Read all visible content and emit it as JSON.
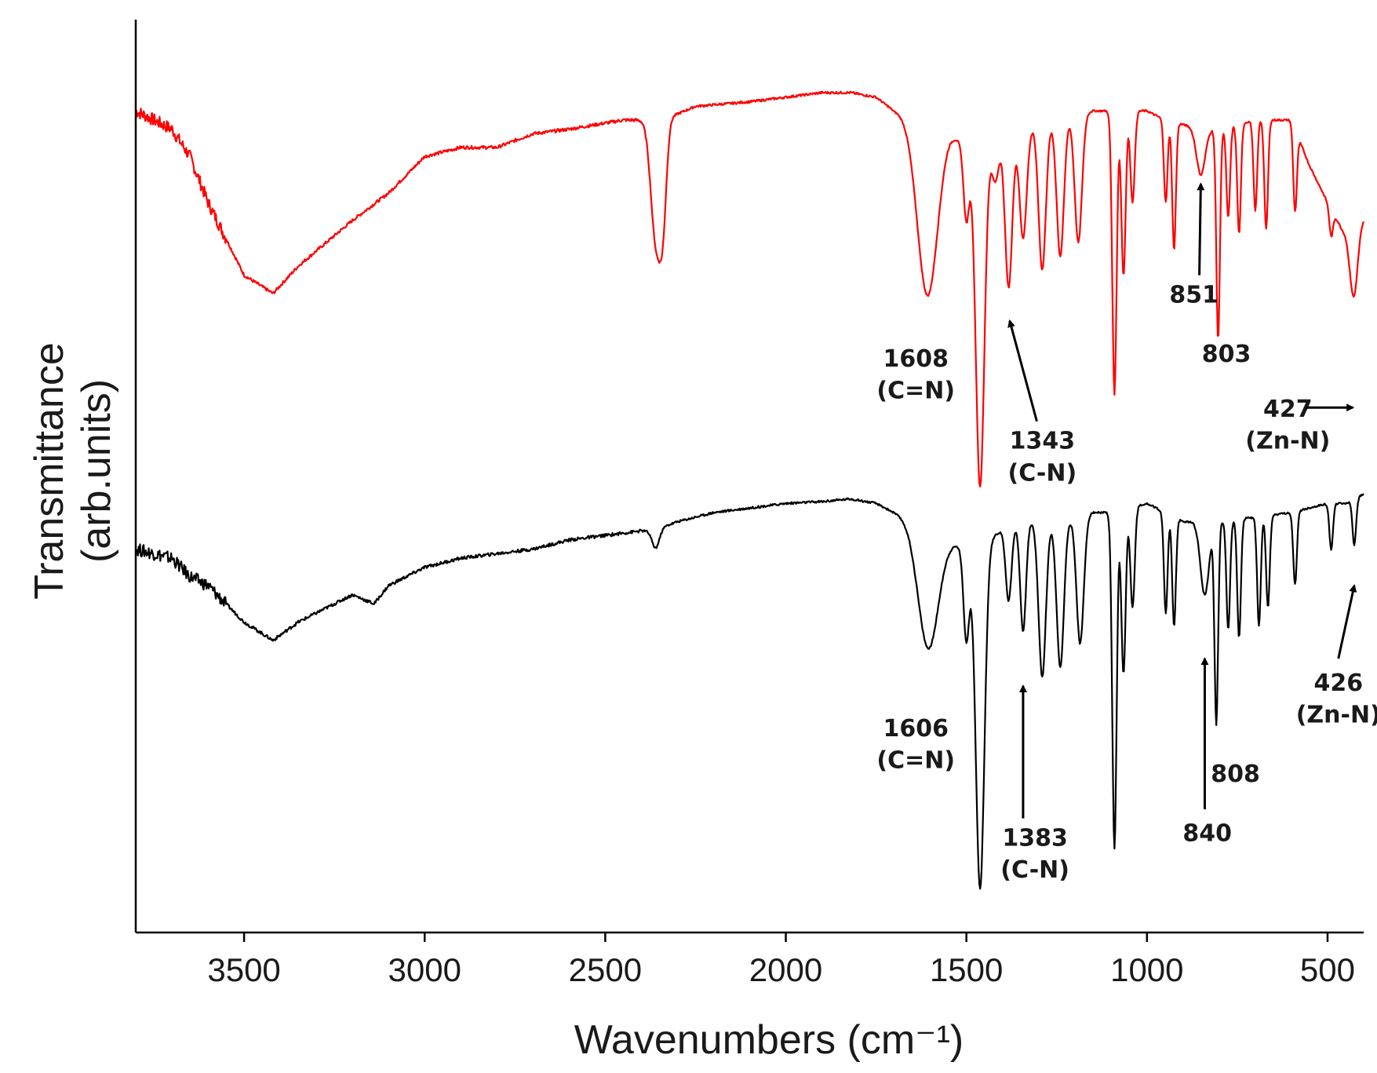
{
  "chart_data": {
    "type": "line",
    "title": "",
    "xlabel": "Wavenumbers (cm⁻¹)",
    "ylabel_line1": "Transmittance",
    "ylabel_line2": "(arb.units)",
    "xlim": [
      3800,
      400
    ],
    "ylim": [
      0,
      100
    ],
    "x_ticks": [
      3500,
      3000,
      2500,
      2000,
      1500,
      1000,
      500
    ],
    "x_tick_labels": [
      "3500",
      "3000",
      "2500",
      "2000",
      "1500",
      "1000",
      "500"
    ],
    "grid": false,
    "series": [
      {
        "name": "red-spectrum",
        "color": "#ff0000",
        "baseline": [
          [
            3800,
            90
          ],
          [
            3700,
            88
          ],
          [
            3650,
            85
          ],
          [
            3600,
            80
          ],
          [
            3500,
            72
          ],
          [
            3420,
            70
          ],
          [
            3350,
            73
          ],
          [
            3200,
            78
          ],
          [
            3100,
            81
          ],
          [
            3000,
            85
          ],
          [
            2900,
            86
          ],
          [
            2800,
            86
          ],
          [
            2700,
            87.5
          ],
          [
            2600,
            88
          ],
          [
            2450,
            89
          ],
          [
            2380,
            89
          ],
          [
            2340,
            89
          ],
          [
            2250,
            90.5
          ],
          [
            2100,
            91
          ],
          [
            2000,
            91.5
          ],
          [
            1900,
            92
          ],
          [
            1820,
            92
          ],
          [
            1750,
            91.5
          ],
          [
            1700,
            90
          ],
          [
            1550,
            88
          ],
          [
            1500,
            86
          ],
          [
            1450,
            87
          ],
          [
            1400,
            87.5
          ],
          [
            1350,
            88
          ],
          [
            1300,
            88.5
          ],
          [
            1250,
            89
          ],
          [
            1200,
            89.5
          ],
          [
            1150,
            90
          ],
          [
            1100,
            90
          ],
          [
            1000,
            90
          ],
          [
            950,
            89
          ],
          [
            850,
            88
          ],
          [
            800,
            88
          ],
          [
            700,
            89
          ],
          [
            650,
            89
          ],
          [
            600,
            89
          ],
          [
            550,
            84
          ],
          [
            500,
            80
          ],
          [
            460,
            77
          ],
          [
            440,
            76
          ],
          [
            400,
            78
          ]
        ],
        "peaks": [
          {
            "x": 3420,
            "depth": 0,
            "width": 1
          },
          {
            "x": 2360,
            "depth": 13,
            "width": 14
          },
          {
            "x": 2340,
            "depth": 9,
            "width": 10
          },
          {
            "x": 1608,
            "depth": 19,
            "width": 28
          },
          {
            "x": 1500,
            "depth": 8,
            "width": 8
          },
          {
            "x": 1462,
            "depth": 38,
            "width": 12
          },
          {
            "x": 1420,
            "depth": 5,
            "width": 10
          },
          {
            "x": 1383,
            "depth": 17,
            "width": 10
          },
          {
            "x": 1343,
            "depth": 12,
            "width": 10
          },
          {
            "x": 1290,
            "depth": 16,
            "width": 10
          },
          {
            "x": 1240,
            "depth": 15,
            "width": 10
          },
          {
            "x": 1190,
            "depth": 14,
            "width": 10
          },
          {
            "x": 1090,
            "depth": 31,
            "width": 6
          },
          {
            "x": 1065,
            "depth": 18,
            "width": 6
          },
          {
            "x": 1040,
            "depth": 10,
            "width": 6
          },
          {
            "x": 948,
            "depth": 9,
            "width": 5
          },
          {
            "x": 925,
            "depth": 14,
            "width": 5
          },
          {
            "x": 851,
            "depth": 5,
            "width": 12
          },
          {
            "x": 803,
            "depth": 23,
            "width": 5
          },
          {
            "x": 775,
            "depth": 10,
            "width": 5
          },
          {
            "x": 745,
            "depth": 12,
            "width": 5
          },
          {
            "x": 700,
            "depth": 10,
            "width": 5
          },
          {
            "x": 670,
            "depth": 12,
            "width": 5
          },
          {
            "x": 590,
            "depth": 9,
            "width": 5
          },
          {
            "x": 490,
            "depth": 3,
            "width": 5
          },
          {
            "x": 427,
            "depth": 7,
            "width": 10
          }
        ]
      },
      {
        "name": "black-spectrum",
        "color": "#000000",
        "baseline": [
          [
            3800,
            42
          ],
          [
            3700,
            41
          ],
          [
            3650,
            39
          ],
          [
            3600,
            38
          ],
          [
            3500,
            34
          ],
          [
            3420,
            32
          ],
          [
            3350,
            34
          ],
          [
            3200,
            37
          ],
          [
            3140,
            36
          ],
          [
            3100,
            38
          ],
          [
            3000,
            40
          ],
          [
            2900,
            41
          ],
          [
            2800,
            41.5
          ],
          [
            2700,
            42
          ],
          [
            2600,
            43
          ],
          [
            2500,
            43.5
          ],
          [
            2400,
            44
          ],
          [
            2370,
            44
          ],
          [
            2300,
            45
          ],
          [
            2200,
            46
          ],
          [
            2100,
            46.5
          ],
          [
            2000,
            47
          ],
          [
            1900,
            47.2
          ],
          [
            1820,
            47.5
          ],
          [
            1750,
            47
          ],
          [
            1700,
            46
          ],
          [
            1550,
            43
          ],
          [
            1500,
            42
          ],
          [
            1450,
            43
          ],
          [
            1400,
            44
          ],
          [
            1350,
            45
          ],
          [
            1300,
            45
          ],
          [
            1250,
            45
          ],
          [
            1200,
            45.5
          ],
          [
            1150,
            46
          ],
          [
            1100,
            46
          ],
          [
            1000,
            47
          ],
          [
            950,
            46
          ],
          [
            900,
            45
          ],
          [
            850,
            45
          ],
          [
            800,
            45
          ],
          [
            700,
            45.5
          ],
          [
            600,
            46
          ],
          [
            500,
            47
          ],
          [
            450,
            47
          ],
          [
            400,
            48
          ]
        ],
        "peaks": [
          {
            "x": 2360,
            "depth": 2,
            "width": 10
          },
          {
            "x": 1606,
            "depth": 13,
            "width": 28
          },
          {
            "x": 1500,
            "depth": 10,
            "width": 8
          },
          {
            "x": 1462,
            "depth": 38,
            "width": 12
          },
          {
            "x": 1383,
            "depth": 8,
            "width": 8
          },
          {
            "x": 1343,
            "depth": 12,
            "width": 8
          },
          {
            "x": 1290,
            "depth": 17,
            "width": 10
          },
          {
            "x": 1240,
            "depth": 16,
            "width": 10
          },
          {
            "x": 1185,
            "depth": 14,
            "width": 10
          },
          {
            "x": 1090,
            "depth": 37,
            "width": 6
          },
          {
            "x": 1065,
            "depth": 18,
            "width": 6
          },
          {
            "x": 1040,
            "depth": 11,
            "width": 6
          },
          {
            "x": 948,
            "depth": 11,
            "width": 5
          },
          {
            "x": 925,
            "depth": 12,
            "width": 5
          },
          {
            "x": 840,
            "depth": 8,
            "width": 12
          },
          {
            "x": 808,
            "depth": 22,
            "width": 5
          },
          {
            "x": 775,
            "depth": 12,
            "width": 5
          },
          {
            "x": 745,
            "depth": 13,
            "width": 5
          },
          {
            "x": 690,
            "depth": 12,
            "width": 5
          },
          {
            "x": 665,
            "depth": 10,
            "width": 5
          },
          {
            "x": 590,
            "depth": 8,
            "width": 5
          },
          {
            "x": 490,
            "depth": 5,
            "width": 5
          },
          {
            "x": 426,
            "depth": 5,
            "width": 5
          }
        ]
      }
    ],
    "annotations": [
      {
        "text": "1608",
        "text2": "(C=N)",
        "color": "#1a1a1a",
        "tx": 1640,
        "ty": 62,
        "ty2": 58.5
      },
      {
        "text": "1343",
        "text2": "(C-N)",
        "color": "#1a1a1a",
        "tx": 1290,
        "ty": 53,
        "ty2": 49.5,
        "arrow_from": [
          1305,
          56
        ],
        "arrow_to": [
          1380,
          67
        ]
      },
      {
        "text": "851",
        "text2": "",
        "color": "#1a1a1a",
        "tx": 870,
        "ty": 69,
        "arrow_from": [
          855,
          72
        ],
        "arrow_to": [
          851,
          82
        ]
      },
      {
        "text": "803",
        "text2": "",
        "color": "#1a1a1a",
        "tx": 780,
        "ty": 62.5
      },
      {
        "text": "427",
        "text2": "(Zn-N)",
        "color": "#1a1a1a",
        "tx": 610,
        "ty": 56.5,
        "ty2": 53,
        "arrow_from": [
          560,
          57.5
        ],
        "arrow_to": [
          430,
          57.5
        ]
      },
      {
        "text": "1606",
        "text2": "(C=N)",
        "color": "#1a1a1a",
        "tx": 1640,
        "ty": 21.5,
        "ty2": 18
      },
      {
        "text": "1383",
        "text2": "(C-N)",
        "color": "#1a1a1a",
        "tx": 1310,
        "ty": 9.5,
        "ty2": 6,
        "arrow_from": [
          1343,
          12.5
        ],
        "arrow_to": [
          1343,
          27
        ]
      },
      {
        "text": "840",
        "text2": "",
        "color": "#1a1a1a",
        "tx": 833,
        "ty": 10,
        "arrow_from": [
          840,
          13.5
        ],
        "arrow_to": [
          840,
          30
        ]
      },
      {
        "text": "808",
        "text2": "",
        "color": "#1a1a1a",
        "tx": 755,
        "ty": 16.5
      },
      {
        "text": "426",
        "text2": "(Zn-N)",
        "color": "#1a1a1a",
        "tx": 470,
        "ty": 26.5,
        "ty2": 23,
        "arrow_from": [
          470,
          30
        ],
        "arrow_to": [
          426,
          38
        ]
      }
    ]
  }
}
